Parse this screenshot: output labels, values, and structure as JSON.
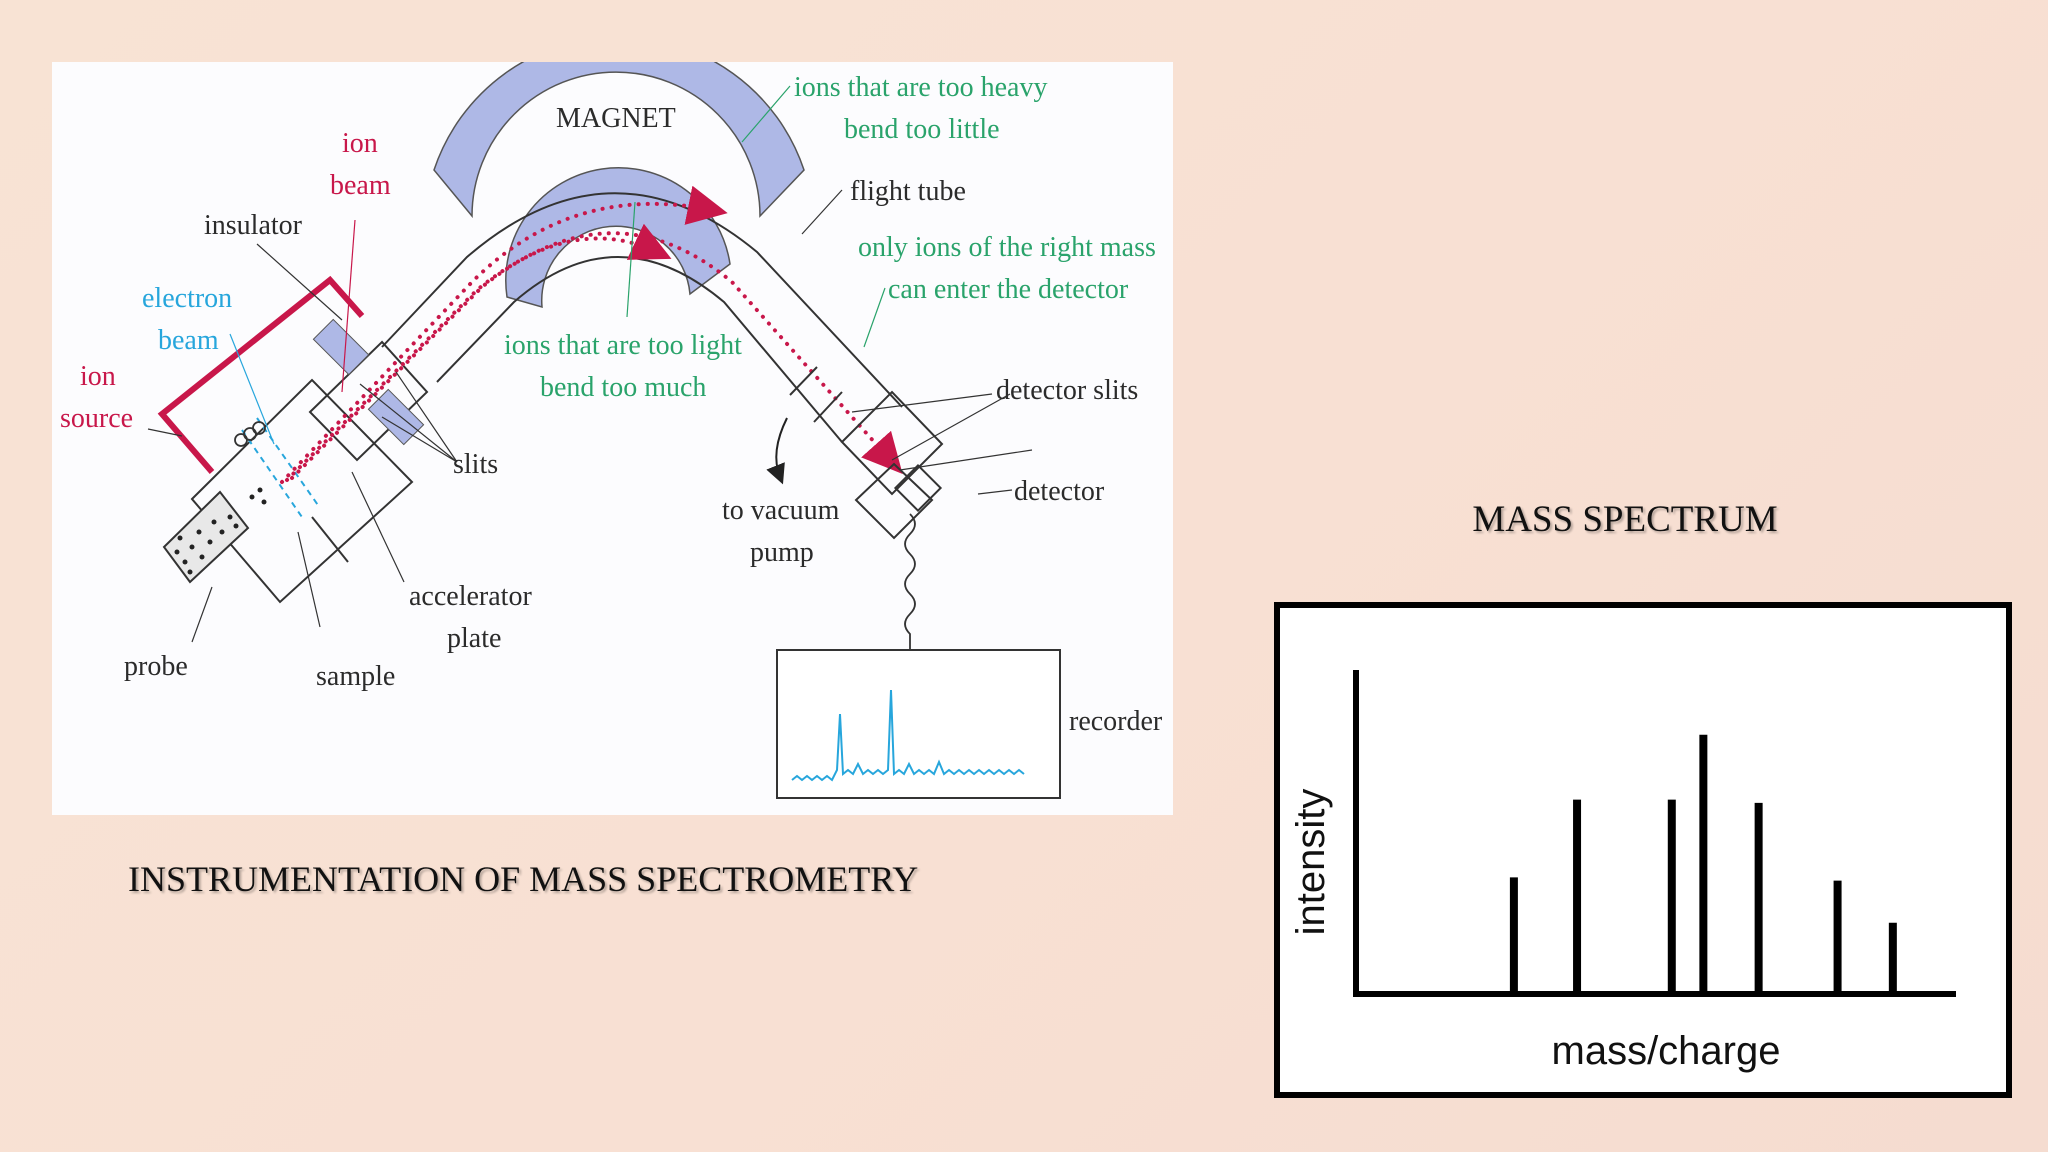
{
  "instrument_diagram": {
    "labels": {
      "magnet": "MAGNET",
      "ion_beam_line1": "ion",
      "ion_beam_line2": "beam",
      "insulator": "insulator",
      "electron_beam_line1": "electron",
      "electron_beam_line2": "beam",
      "ion_source_line1": "ion",
      "ion_source_line2": "source",
      "slits": "slits",
      "accelerator_plate_line1": "accelerator",
      "accelerator_plate_line2": "plate",
      "probe": "probe",
      "sample": "sample",
      "too_heavy_line1": "ions that are too heavy",
      "too_heavy_line2": "bend too little",
      "flight_tube": "flight tube",
      "right_mass_line1": "only ions of the right mass",
      "right_mass_line2": "can enter the detector",
      "too_light_line1": "ions that are too light",
      "too_light_line2": "bend too much",
      "detector_slits": "detector slits",
      "detector": "detector",
      "vacuum_line1": "to vacuum",
      "vacuum_line2": "pump",
      "recorder": "recorder"
    },
    "colors": {
      "ion_beam": "#c8174a",
      "electron_beam": "#27a6dc",
      "magnet": "#aeb8e6",
      "annotation_green": "#2aa36b",
      "label_black": "#2b2b2b"
    }
  },
  "caption": "INSTRUMENTATION OF MASS SPECTROMETRY",
  "spectrum": {
    "title": "MASS SPECTRUM",
    "chart_data": {
      "type": "bar",
      "xlabel": "mass/charge",
      "ylabel": "intensity",
      "x": [
        20,
        28,
        40,
        44,
        51,
        61,
        68
      ],
      "values": [
        36,
        60,
        60,
        80,
        59,
        35,
        22
      ],
      "xlim": [
        0,
        76
      ],
      "ylim": [
        0,
        100
      ],
      "grid": false,
      "bar_color": "#000000"
    }
  }
}
